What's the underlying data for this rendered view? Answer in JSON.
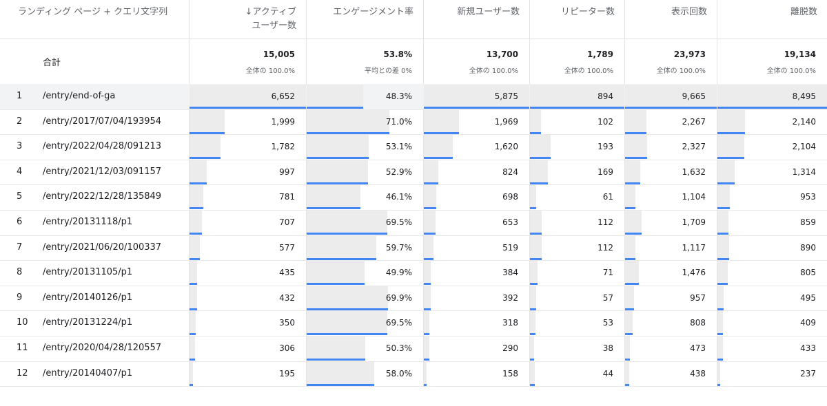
{
  "columns": [
    {
      "key": "dim",
      "label": "ランディング ページ + クエリ文字列",
      "sortable": false
    },
    {
      "key": "active",
      "label_top": "アクティブ",
      "label_bottom": "ユーザー数",
      "sort_icon": "arrow-down",
      "bar_max": 6652
    },
    {
      "key": "engage",
      "label": "エンゲージメント率",
      "bar_max": 100
    },
    {
      "key": "new",
      "label": "新規ユーザー数",
      "bar_max": 5875
    },
    {
      "key": "repeat",
      "label": "リピーター数",
      "bar_max": 894
    },
    {
      "key": "views",
      "label": "表示回数",
      "bar_max": 9665
    },
    {
      "key": "bounce",
      "label": "離脱数",
      "bar_max": 8495
    }
  ],
  "totals": {
    "label": "合計",
    "values": [
      "15,005",
      "53.8%",
      "13,700",
      "1,789",
      "23,973",
      "19,134"
    ],
    "subs": [
      "全体の 100.0%",
      "平均との差 0%",
      "全体の 100.0%",
      "全体の 100.0%",
      "全体の 100.0%",
      "全体の 100.0%"
    ]
  },
  "rows": [
    {
      "rank": "1",
      "page": "/entry/end-of-ga",
      "v": [
        "6,652",
        "48.3%",
        "5,875",
        "894",
        "9,665",
        "8,495"
      ],
      "n": [
        6652,
        48.3,
        5875,
        894,
        9665,
        8495
      ]
    },
    {
      "rank": "2",
      "page": "/entry/2017/07/04/193954",
      "v": [
        "1,999",
        "71.0%",
        "1,969",
        "102",
        "2,267",
        "2,140"
      ],
      "n": [
        1999,
        71.0,
        1969,
        102,
        2267,
        2140
      ]
    },
    {
      "rank": "3",
      "page": "/entry/2022/04/28/091213",
      "v": [
        "1,782",
        "53.1%",
        "1,620",
        "193",
        "2,327",
        "2,104"
      ],
      "n": [
        1782,
        53.1,
        1620,
        193,
        2327,
        2104
      ]
    },
    {
      "rank": "4",
      "page": "/entry/2021/12/03/091157",
      "v": [
        "997",
        "52.9%",
        "824",
        "169",
        "1,632",
        "1,314"
      ],
      "n": [
        997,
        52.9,
        824,
        169,
        1632,
        1314
      ]
    },
    {
      "rank": "5",
      "page": "/entry/2022/12/28/135849",
      "v": [
        "781",
        "46.1%",
        "698",
        "61",
        "1,104",
        "953"
      ],
      "n": [
        781,
        46.1,
        698,
        61,
        1104,
        953
      ]
    },
    {
      "rank": "6",
      "page": "/entry/20131118/p1",
      "v": [
        "707",
        "69.5%",
        "653",
        "112",
        "1,709",
        "859"
      ],
      "n": [
        707,
        69.5,
        653,
        112,
        1709,
        859
      ]
    },
    {
      "rank": "7",
      "page": "/entry/2021/06/20/100337",
      "v": [
        "577",
        "59.7%",
        "519",
        "112",
        "1,117",
        "890"
      ],
      "n": [
        577,
        59.7,
        519,
        112,
        1117,
        890
      ]
    },
    {
      "rank": "8",
      "page": "/entry/20131105/p1",
      "v": [
        "435",
        "49.9%",
        "384",
        "71",
        "1,476",
        "805"
      ],
      "n": [
        435,
        49.9,
        384,
        71,
        1476,
        805
      ]
    },
    {
      "rank": "9",
      "page": "/entry/20140126/p1",
      "v": [
        "432",
        "69.9%",
        "392",
        "57",
        "957",
        "495"
      ],
      "n": [
        432,
        69.9,
        392,
        57,
        957,
        495
      ]
    },
    {
      "rank": "10",
      "page": "/entry/20131224/p1",
      "v": [
        "350",
        "69.5%",
        "318",
        "53",
        "808",
        "409"
      ],
      "n": [
        350,
        69.5,
        318,
        53,
        808,
        409
      ]
    },
    {
      "rank": "11",
      "page": "/entry/2020/04/28/120557",
      "v": [
        "306",
        "50.3%",
        "290",
        "38",
        "473",
        "433"
      ],
      "n": [
        306,
        50.3,
        290,
        38,
        473,
        433
      ]
    },
    {
      "rank": "12",
      "page": "/entry/20140407/p1",
      "v": [
        "195",
        "58.0%",
        "158",
        "44",
        "438",
        "237"
      ],
      "n": [
        195,
        58.0,
        158,
        44,
        438,
        237
      ]
    }
  ],
  "colors": {
    "bar": "#4285f4",
    "bar_bg": "#ececec",
    "header_text": "#5f6368",
    "text": "#202124"
  }
}
